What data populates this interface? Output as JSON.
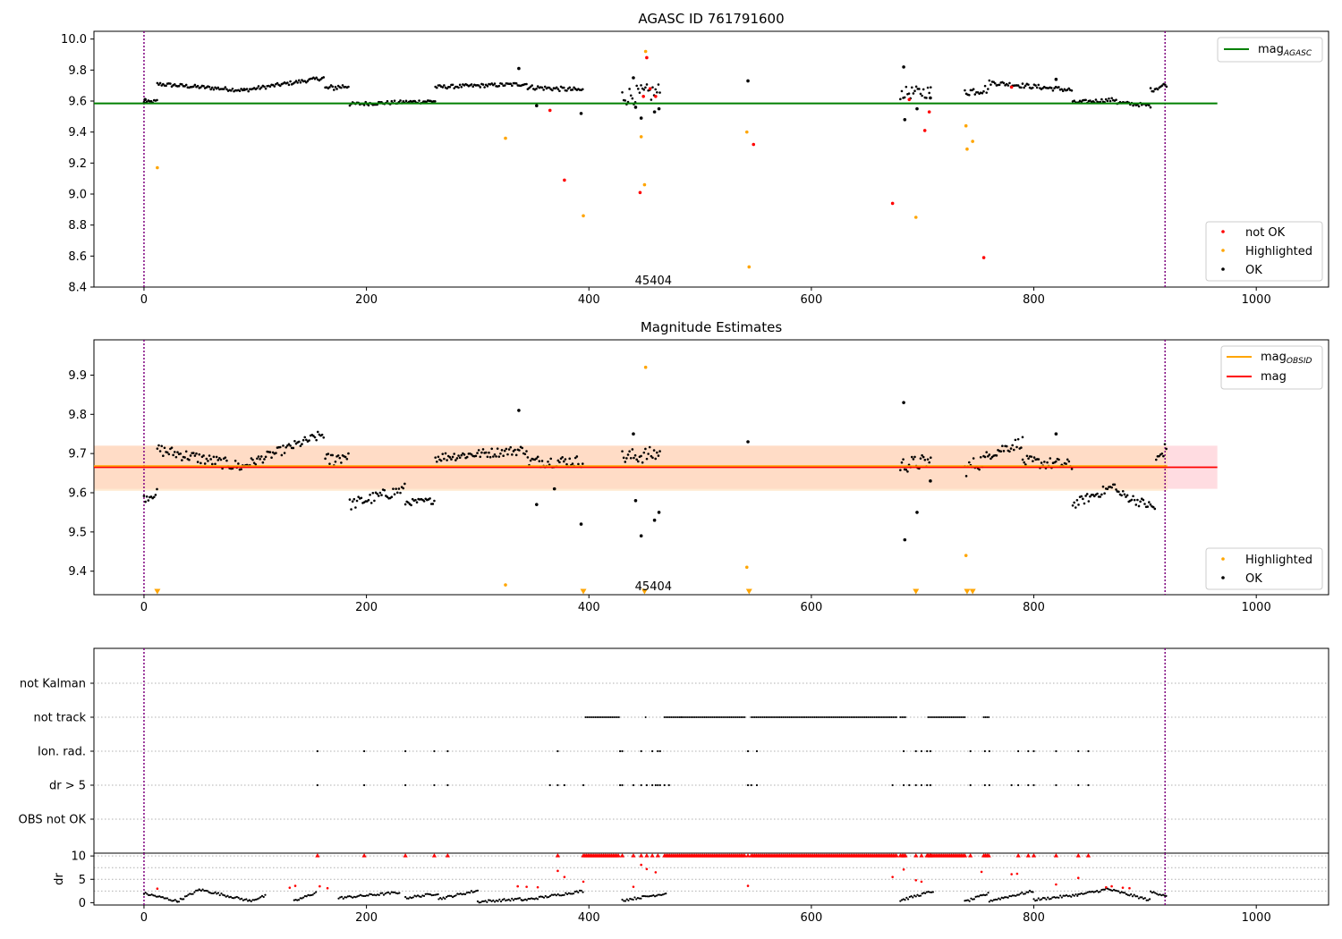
{
  "chart_data": [
    {
      "type": "scatter",
      "title": "AGASC ID 761791600",
      "xlim": [
        -45,
        1065
      ],
      "ylim": [
        8.4,
        10.05
      ],
      "x_ticks": [
        0,
        200,
        400,
        600,
        800,
        1000
      ],
      "y_ticks": [
        "8.4",
        "8.6",
        "8.8",
        "9.0",
        "9.2",
        "9.4",
        "9.6",
        "9.8",
        "10.0"
      ],
      "obsid_label": "45404",
      "obsid_label_x": 458,
      "obsid_label_y": 8.44,
      "vlines": [
        0,
        918
      ],
      "hline": {
        "name": "mag",
        "subscript": "AGASC",
        "value": 9.585,
        "x_range": [
          -45,
          965
        ],
        "color": "#008000"
      },
      "legend_top": [
        {
          "label": "mag",
          "subscript": "AGASC",
          "color": "#008000"
        }
      ],
      "legend_bottom": [
        {
          "label": "not OK",
          "color": "#ff0000"
        },
        {
          "label": "Highlighted",
          "color": "#ffa500"
        },
        {
          "label": "OK",
          "color": "#000000"
        }
      ],
      "series": [
        {
          "name": "not OK",
          "color": "#ff0000",
          "x": [
            365,
            378,
            446,
            449,
            452,
            455,
            460,
            548,
            688,
            702,
            706,
            755,
            780,
            673
          ],
          "y": [
            9.54,
            9.09,
            9.01,
            9.63,
            9.88,
            9.68,
            9.63,
            9.32,
            9.61,
            9.41,
            9.53,
            8.59,
            9.69,
            8.94
          ]
        },
        {
          "name": "Highlighted",
          "color": "#ffa500",
          "x": [
            12,
            325,
            395,
            447,
            450,
            451,
            542,
            544,
            694,
            739,
            740,
            745
          ],
          "y": [
            9.17,
            9.36,
            8.86,
            9.37,
            9.06,
            9.92,
            9.4,
            8.53,
            8.85,
            9.44,
            9.29,
            9.34
          ]
        },
        {
          "name": "OK",
          "color": "#000000",
          "x": [
            337,
            353,
            393,
            440,
            442,
            447,
            459,
            463,
            543,
            683,
            684,
            695,
            707,
            820,
            1
          ],
          "y": [
            9.81,
            9.57,
            9.52,
            9.75,
            9.56,
            9.49,
            9.53,
            9.55,
            9.73,
            9.82,
            9.48,
            9.55,
            9.62,
            9.74,
            9.61
          ]
        }
      ],
      "ok_segments": [
        {
          "x0": 0,
          "x1": 12,
          "y0": 9.59,
          "y1": 9.6,
          "noise": 0.01
        },
        {
          "x0": 12,
          "x1": 90,
          "y0": 9.71,
          "y1": 9.67,
          "noise": 0.012
        },
        {
          "x0": 90,
          "x1": 162,
          "y0": 9.67,
          "y1": 9.75,
          "noise": 0.012
        },
        {
          "x0": 163,
          "x1": 185,
          "y0": 9.68,
          "y1": 9.7,
          "noise": 0.02
        },
        {
          "x0": 185,
          "x1": 262,
          "y0": 9.58,
          "y1": 9.6,
          "noise": 0.012
        },
        {
          "x0": 262,
          "x1": 345,
          "y0": 9.69,
          "y1": 9.71,
          "noise": 0.012
        },
        {
          "x0": 345,
          "x1": 395,
          "y0": 9.69,
          "y1": 9.67,
          "noise": 0.015
        },
        {
          "x0": 430,
          "x1": 465,
          "y0": 9.63,
          "y1": 9.66,
          "noise": 0.06
        },
        {
          "x0": 680,
          "x1": 708,
          "y0": 9.65,
          "y1": 9.66,
          "noise": 0.04
        },
        {
          "x0": 738,
          "x1": 760,
          "y0": 9.66,
          "y1": 9.68,
          "noise": 0.03
        },
        {
          "x0": 760,
          "x1": 835,
          "y0": 9.72,
          "y1": 9.67,
          "noise": 0.015
        },
        {
          "x0": 835,
          "x1": 875,
          "y0": 9.59,
          "y1": 9.61,
          "noise": 0.012
        },
        {
          "x0": 875,
          "x1": 905,
          "y0": 9.59,
          "y1": 9.57,
          "noise": 0.012
        },
        {
          "x0": 905,
          "x1": 920,
          "y0": 9.67,
          "y1": 9.71,
          "noise": 0.015
        }
      ]
    },
    {
      "type": "scatter",
      "title": "Magnitude Estimates",
      "xlim": [
        -45,
        1065
      ],
      "ylim": [
        9.34,
        9.99
      ],
      "x_ticks": [
        0,
        200,
        400,
        600,
        800,
        1000
      ],
      "y_ticks": [
        "9.4",
        "9.5",
        "9.6",
        "9.7",
        "9.8",
        "9.9"
      ],
      "obsid_label": "45404",
      "obsid_label_x": 458,
      "obsid_label_y": 9.36,
      "vlines": [
        0,
        918
      ],
      "mag_line": {
        "value": 9.665,
        "band": [
          9.61,
          9.72
        ],
        "x_range": [
          -45,
          965
        ],
        "line_color": "#ff0000",
        "band_color": "#ffc0c8"
      },
      "mag_obsid_line": {
        "value": 9.665,
        "band": [
          9.605,
          9.72
        ],
        "x_range": [
          -45,
          920
        ],
        "line_color": "#ffa500",
        "band_color": "#ffdcb4"
      },
      "legend_top": [
        {
          "label": "mag",
          "subscript": "OBSID",
          "color": "#ffa500"
        },
        {
          "label": "mag",
          "subscript": "",
          "color": "#ff0000"
        }
      ],
      "legend_bottom": [
        {
          "label": "Highlighted",
          "color": "#ffa500"
        },
        {
          "label": "OK",
          "color": "#000000"
        }
      ],
      "highlighted": {
        "x": [
          325,
          451,
          542,
          739
        ],
        "y": [
          9.365,
          9.92,
          9.41,
          9.44
        ]
      },
      "lower_limit_markers": {
        "x": [
          12,
          395,
          450,
          544,
          694,
          740,
          745
        ]
      },
      "ok_points": {
        "x": [
          337,
          353,
          440,
          442,
          447,
          459,
          463,
          543,
          683,
          684,
          695,
          707,
          820,
          393,
          369
        ],
        "y": [
          9.81,
          9.57,
          9.75,
          9.58,
          9.49,
          9.53,
          9.55,
          9.73,
          9.83,
          9.48,
          9.55,
          9.63,
          9.75,
          9.52,
          9.61
        ]
      },
      "ok_segments": [
        {
          "x0": 0,
          "x1": 12,
          "y0": 9.585,
          "y1": 9.6,
          "noise": 0.01
        },
        {
          "x0": 12,
          "x1": 90,
          "y0": 9.71,
          "y1": 9.665,
          "noise": 0.015
        },
        {
          "x0": 90,
          "x1": 162,
          "y0": 9.67,
          "y1": 9.75,
          "noise": 0.012
        },
        {
          "x0": 163,
          "x1": 185,
          "y0": 9.68,
          "y1": 9.7,
          "noise": 0.02
        },
        {
          "x0": 185,
          "x1": 235,
          "y0": 9.57,
          "y1": 9.61,
          "noise": 0.015
        },
        {
          "x0": 235,
          "x1": 262,
          "y0": 9.575,
          "y1": 9.58,
          "noise": 0.008
        },
        {
          "x0": 262,
          "x1": 345,
          "y0": 9.69,
          "y1": 9.71,
          "noise": 0.012
        },
        {
          "x0": 345,
          "x1": 395,
          "y0": 9.68,
          "y1": 9.68,
          "noise": 0.015
        },
        {
          "x0": 430,
          "x1": 465,
          "y0": 9.69,
          "y1": 9.7,
          "noise": 0.02
        },
        {
          "x0": 680,
          "x1": 708,
          "y0": 9.67,
          "y1": 9.68,
          "noise": 0.02
        },
        {
          "x0": 738,
          "x1": 760,
          "y0": 9.66,
          "y1": 9.69,
          "noise": 0.02
        },
        {
          "x0": 760,
          "x1": 790,
          "y0": 9.7,
          "y1": 9.73,
          "noise": 0.015
        },
        {
          "x0": 790,
          "x1": 835,
          "y0": 9.68,
          "y1": 9.67,
          "noise": 0.015
        },
        {
          "x0": 835,
          "x1": 875,
          "y0": 9.57,
          "y1": 9.62,
          "noise": 0.012
        },
        {
          "x0": 875,
          "x1": 910,
          "y0": 9.6,
          "y1": 9.56,
          "noise": 0.012
        },
        {
          "x0": 910,
          "x1": 920,
          "y0": 9.68,
          "y1": 9.72,
          "noise": 0.015
        }
      ]
    },
    {
      "type": "scatter",
      "title": "",
      "xlim": [
        -45,
        1065
      ],
      "categories": [
        "not Kalman",
        "not track",
        "Ion. rad.",
        "dr > 5",
        "OBS not OK"
      ],
      "vlines": [
        0,
        918
      ],
      "not_track": [
        [
          397,
          427
        ],
        [
          451,
          451
        ],
        [
          468,
          483
        ],
        [
          483,
          540
        ],
        [
          546,
          677
        ],
        [
          680,
          685
        ],
        [
          705,
          738
        ],
        [
          755,
          760
        ]
      ],
      "ion_rad": [
        156,
        198,
        235,
        261,
        273,
        372,
        428,
        430,
        447,
        457,
        462,
        464,
        543,
        551,
        683,
        694,
        699,
        704,
        707,
        743,
        756,
        760,
        786,
        795,
        800,
        820,
        840,
        849
      ],
      "dr_gt_5": [
        156,
        198,
        235,
        261,
        273,
        365,
        372,
        378,
        395,
        428,
        430,
        440,
        447,
        452,
        457,
        460,
        462,
        464,
        468,
        472,
        543,
        546,
        551,
        673,
        683,
        688,
        694,
        699,
        704,
        707,
        743,
        756,
        760,
        780,
        786,
        795,
        800,
        820,
        840,
        849
      ]
    },
    {
      "type": "scatter",
      "title": "",
      "ylabel": "dr",
      "xlim": [
        -45,
        1065
      ],
      "ylim": [
        -0.5,
        10.6
      ],
      "x_ticks": [
        0,
        200,
        400,
        600,
        800,
        1000
      ],
      "y_ticks": [
        "0",
        "5",
        "10"
      ],
      "vlines": [
        0,
        918
      ],
      "saturated_value": 10,
      "red_at_10_ranges": [
        [
          395,
          427
        ],
        [
          468,
          540
        ],
        [
          546,
          677
        ],
        [
          680,
          685
        ],
        [
          705,
          738
        ],
        [
          755,
          760
        ]
      ],
      "red_at_10_points": [
        156,
        198,
        235,
        261,
        273,
        372,
        430,
        440,
        447,
        452,
        457,
        462,
        543,
        683,
        694,
        699,
        704,
        707,
        743,
        786,
        795,
        800,
        820,
        840,
        849
      ],
      "red_mid_points": {
        "x": [
          12,
          131,
          136,
          158,
          165,
          336,
          344,
          354,
          372,
          378,
          395,
          440,
          447,
          452,
          460,
          543,
          673,
          683,
          694,
          699,
          753,
          780,
          785,
          820,
          840,
          865,
          870,
          880,
          886
        ],
        "y": [
          3,
          3.2,
          3.6,
          3.5,
          3.1,
          3.5,
          3.4,
          3.3,
          6.8,
          5.5,
          4.5,
          3.4,
          8.1,
          7.2,
          6.5,
          3.6,
          5.5,
          7.1,
          4.8,
          4.5,
          6.6,
          6.1,
          6.2,
          3.9,
          5.3,
          3.3,
          3.5,
          3.2,
          3.1
        ]
      },
      "black_wave": [
        {
          "x0": 0,
          "x1": 30,
          "y0": 2,
          "y1": 0.3
        },
        {
          "x0": 30,
          "x1": 50,
          "y0": 0.3,
          "y1": 2.8
        },
        {
          "x0": 50,
          "x1": 95,
          "y0": 2.8,
          "y1": 0.4
        },
        {
          "x0": 95,
          "x1": 110,
          "y0": 0.4,
          "y1": 1.5
        },
        {
          "x0": 135,
          "x1": 155,
          "y0": 0.3,
          "y1": 2.2
        },
        {
          "x0": 175,
          "x1": 230,
          "y0": 1.0,
          "y1": 2.2
        },
        {
          "x0": 235,
          "x1": 265,
          "y0": 1.0,
          "y1": 2.0
        },
        {
          "x0": 265,
          "x1": 300,
          "y0": 0.8,
          "y1": 2.6
        },
        {
          "x0": 300,
          "x1": 340,
          "y0": 0.2,
          "y1": 0.8
        },
        {
          "x0": 340,
          "x1": 395,
          "y0": 0.5,
          "y1": 2.5
        },
        {
          "x0": 430,
          "x1": 470,
          "y0": 0.5,
          "y1": 2.0
        },
        {
          "x0": 680,
          "x1": 710,
          "y0": 0.5,
          "y1": 2.5
        },
        {
          "x0": 738,
          "x1": 760,
          "y0": 0.2,
          "y1": 2.0
        },
        {
          "x0": 760,
          "x1": 800,
          "y0": 0.4,
          "y1": 2.5
        },
        {
          "x0": 800,
          "x1": 840,
          "y0": 0.6,
          "y1": 1.7
        },
        {
          "x0": 840,
          "x1": 865,
          "y0": 1.7,
          "y1": 2.8
        },
        {
          "x0": 865,
          "x1": 905,
          "y0": 3.0,
          "y1": 0.5
        },
        {
          "x0": 905,
          "x1": 920,
          "y0": 2.3,
          "y1": 1.5
        }
      ]
    }
  ]
}
